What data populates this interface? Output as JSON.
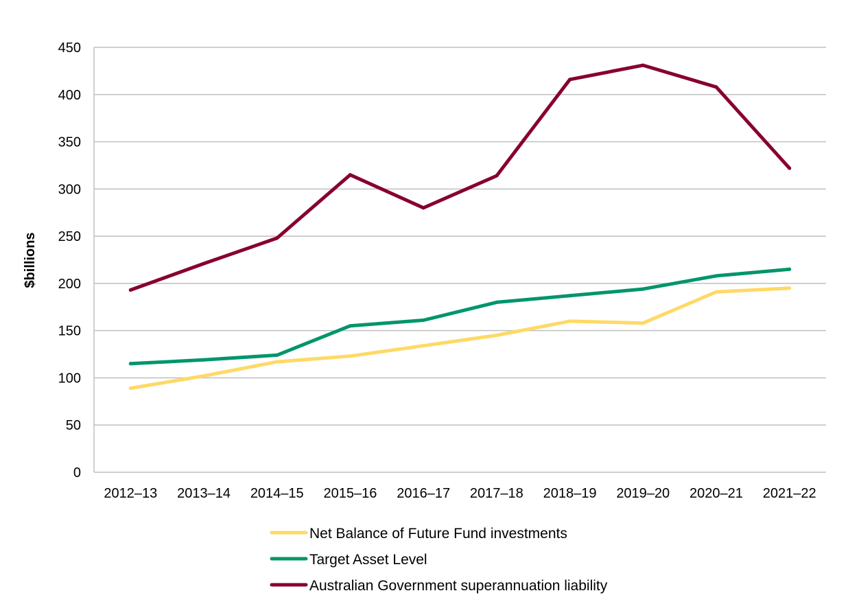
{
  "chart_data": {
    "type": "line",
    "title": "",
    "xlabel": "",
    "ylabel": "$billions",
    "ylim": [
      0,
      450
    ],
    "yticks": [
      0,
      50,
      100,
      150,
      200,
      250,
      300,
      350,
      400,
      450
    ],
    "grid": "horizontal",
    "legend_position": "bottom",
    "categories": [
      "2012–13",
      "2013–14",
      "2014–15",
      "2015–16",
      "2016–17",
      "2017–18",
      "2018–19",
      "2019–20",
      "2020–21",
      "2021–22"
    ],
    "series": [
      {
        "name": "Net Balance of Future Fund investments",
        "color": "#FFD966",
        "values": [
          89,
          102,
          117,
          123,
          134,
          145,
          160,
          158,
          191,
          195
        ]
      },
      {
        "name": "Target Asset Level",
        "color": "#00956B",
        "values": [
          115,
          119,
          124,
          155,
          161,
          180,
          187,
          194,
          208,
          215
        ]
      },
      {
        "name": "Australian Government superannuation liability",
        "color": "#87002F",
        "values": [
          193,
          221,
          248,
          315,
          280,
          314,
          416,
          431,
          408,
          322
        ]
      }
    ]
  },
  "colors": {
    "gridline": "#BFBFBF",
    "axis": "#BFBFBF",
    "text": "#000000"
  }
}
